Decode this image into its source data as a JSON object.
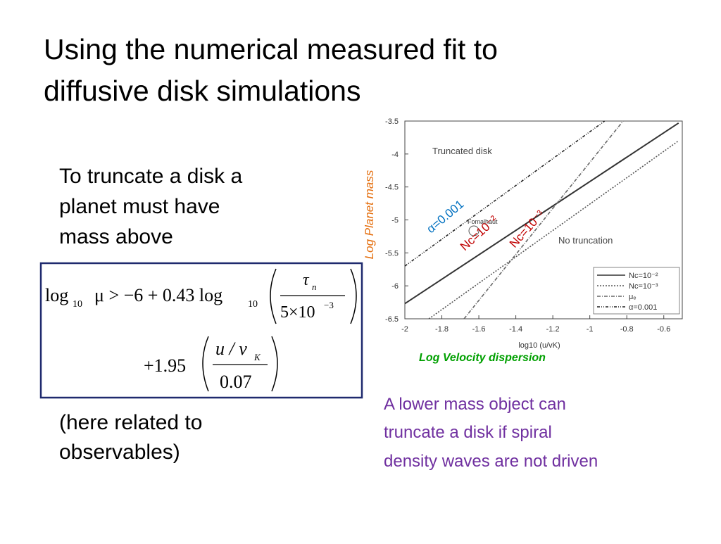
{
  "title": [
    "Using the numerical measured fit to",
    "diffusive disk simulations"
  ],
  "bullet": [
    "To truncate a disk a",
    "planet must have",
    "mass above"
  ],
  "note": [
    "(here related to",
    "observables)"
  ],
  "caption": [
    "A lower mass object can",
    "truncate a disk if spiral",
    "density waves are not driven"
  ],
  "equation": [
    "log",
    "10",
    "μ > −6 + 0.43 log",
    "10",
    "τ",
    "n",
    "5×10",
    "−3",
    "+1.95",
    "u / v",
    "K",
    "0.07"
  ],
  "chart_data": {
    "type": "line",
    "x_axis_label": "log10 (u/vK)",
    "y_title": "Log Planet mass",
    "x_title": "Log Velocity dispersion",
    "xlim": [
      -2,
      -0.5
    ],
    "ylim": [
      -6.5,
      -3.5
    ],
    "xticks": [
      -2,
      -1.8,
      -1.6,
      -1.4,
      -1.2,
      -1,
      -0.8,
      -0.6
    ],
    "yticks": [
      -3.5,
      -4,
      -4.5,
      -5,
      -5.5,
      -6,
      -6.5
    ],
    "series": [
      {
        "name": "Nc=10⁻²",
        "color": "#333333",
        "dash": "solid",
        "x": [
          -2,
          -0.52
        ],
        "values": [
          -6.27,
          -3.53
        ]
      },
      {
        "name": "Nc=10⁻³",
        "color": "#555555",
        "dash": "dotted",
        "x": [
          -1.87,
          -0.52
        ],
        "values": [
          -6.5,
          -3.8
        ]
      },
      {
        "name": "μₑ",
        "color": "#666666",
        "dash": "dashdot",
        "x": [
          -1.68,
          -0.82
        ],
        "values": [
          -6.5,
          -3.5
        ]
      },
      {
        "name": "α=0.001",
        "color": "#222222",
        "dash": "dashdotdot",
        "x": [
          -2,
          -0.92
        ],
        "values": [
          -5.7,
          -3.5
        ]
      }
    ],
    "annotations": [
      "Truncated disk",
      "No truncation",
      "Fomalhaut",
      "α=0.001",
      "Nc=10⁻²",
      "Nc=10⁻³"
    ]
  }
}
